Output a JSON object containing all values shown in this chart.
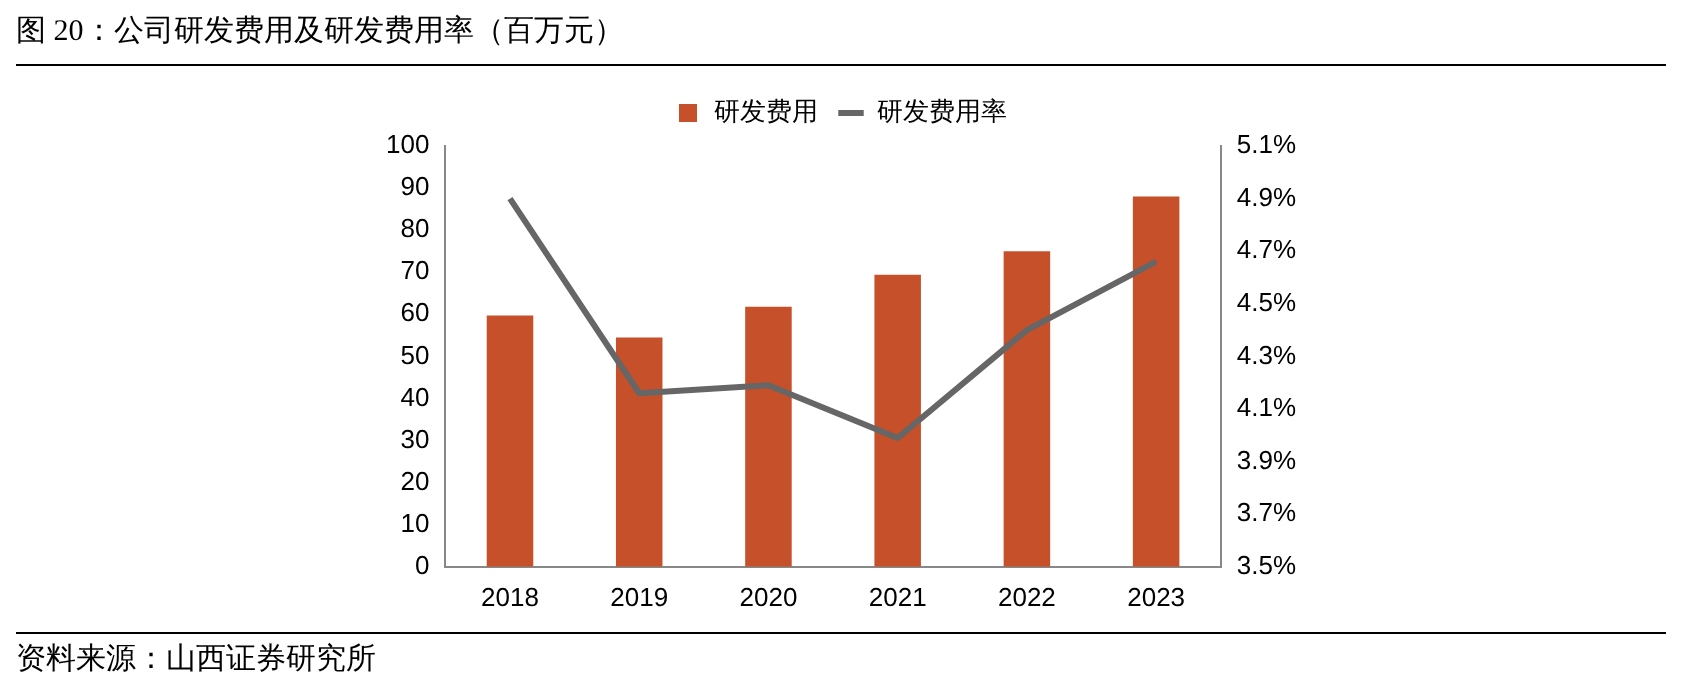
{
  "chart_data": {
    "type": "bar",
    "title": "图 20：公司研发费用及研发费用率（百万元）",
    "categories": [
      "2018",
      "2019",
      "2020",
      "2021",
      "2022",
      "2023"
    ],
    "series": [
      {
        "name": "研发费用",
        "color": "#c5502a",
        "values": [
          59.7,
          54.5,
          61.8,
          69.4,
          75,
          88
        ]
      },
      {
        "name": "研发费用率",
        "type": "line",
        "axis": "y2",
        "color": "#666666",
        "values": [
          4.9,
          4.16,
          4.19,
          3.99,
          4.4,
          4.66
        ]
      }
    ],
    "ylim": [
      0,
      100
    ],
    "yticks": [
      0,
      10,
      20,
      30,
      40,
      50,
      60,
      70,
      80,
      90,
      100
    ],
    "y2lim": [
      3.5,
      5.1
    ],
    "y2ticks": [
      {
        "value": 3.5,
        "label": "3.5%"
      },
      {
        "value": 3.7,
        "label": "3.7%"
      },
      {
        "value": 3.9,
        "label": "3.9%"
      },
      {
        "value": 4.1,
        "label": "4.1%"
      },
      {
        "value": 4.3,
        "label": "4.3%"
      },
      {
        "value": 4.5,
        "label": "4.5%"
      },
      {
        "value": 4.7,
        "label": "4.7%"
      },
      {
        "value": 4.9,
        "label": "4.9%"
      },
      {
        "value": 5.1,
        "label": "5.1%"
      }
    ],
    "legend": "top",
    "grid": false,
    "annotations": [
      "资料来源：山西证券研究所"
    ]
  }
}
